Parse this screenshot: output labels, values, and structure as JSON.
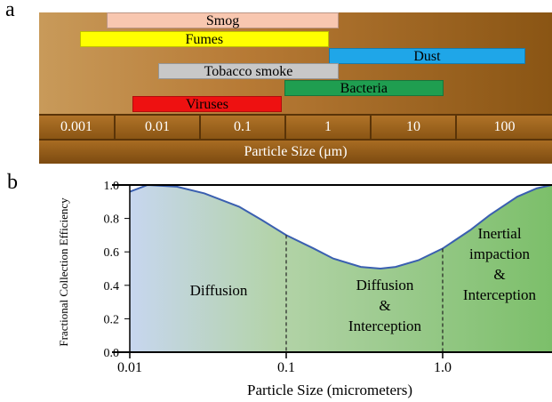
{
  "panel_a_letter": "a",
  "panel_b_letter": "b",
  "chart_data": [
    {
      "type": "bar",
      "orientation": "horizontal-range",
      "xscale": "log",
      "xlabel": "Particle Size (μm)",
      "tick_labels": [
        "0.001",
        "0.01",
        "0.1",
        "1",
        "10",
        "100"
      ],
      "ranges": [
        {
          "label": "Smog",
          "start": 0.0025,
          "end": 1.3,
          "color": "#f8c7b0"
        },
        {
          "label": "Fumes",
          "start": 0.0012,
          "end": 1.0,
          "color": "#ffff00"
        },
        {
          "label": "Dust",
          "start": 1.0,
          "end": 200,
          "color": "#1fa6e8"
        },
        {
          "label": "Tobacco smoke",
          "start": 0.01,
          "end": 1.3,
          "color": "#c8c8c8"
        },
        {
          "label": "Bacteria",
          "start": 0.3,
          "end": 22,
          "color": "#1f9e50"
        },
        {
          "label": "Viruses",
          "start": 0.005,
          "end": 0.28,
          "color": "#ee1111"
        }
      ]
    },
    {
      "type": "area",
      "xscale": "log",
      "xlabel": "Particle Size (micrometers)",
      "ylabel": "Fractional Collection Efficiency",
      "xlim": [
        0.01,
        5
      ],
      "ylim": [
        0.0,
        1.0
      ],
      "x_ticks": [
        "0.01",
        "0.1",
        "1.0"
      ],
      "y_ticks": [
        "0.0",
        "0.2",
        "0.4",
        "0.6",
        "0.8",
        "1.0"
      ],
      "series": [
        {
          "x": [
            0.01,
            0.013,
            0.02,
            0.03,
            0.05,
            0.07,
            0.1,
            0.15,
            0.2,
            0.3,
            0.4,
            0.5,
            0.7,
            1.0,
            1.5,
            2,
            3,
            4,
            5
          ],
          "y": [
            0.96,
            1.0,
            0.99,
            0.95,
            0.87,
            0.79,
            0.7,
            0.62,
            0.56,
            0.51,
            0.5,
            0.51,
            0.55,
            0.62,
            0.73,
            0.82,
            0.93,
            0.98,
            1.0
          ]
        }
      ],
      "dividers": [
        0.1,
        1.0
      ],
      "regions": [
        {
          "lines": [
            "Diffusion"
          ]
        },
        {
          "lines": [
            "Diffusion",
            "&",
            "Interception"
          ]
        },
        {
          "lines": [
            "Inertial",
            "impaction",
            "&",
            "Interception"
          ]
        }
      ]
    }
  ]
}
